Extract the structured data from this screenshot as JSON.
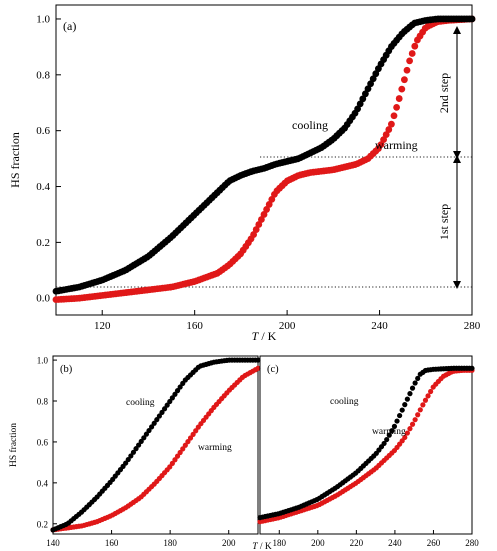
{
  "colors": {
    "cooling": "#000000",
    "warming": "#e01818"
  },
  "chart_data": [
    {
      "panel": "(a)",
      "type": "scatter",
      "xlabel_italic": "T",
      "xlabel_unit": " / K",
      "ylabel": "HS fraction",
      "xlim": [
        100,
        280
      ],
      "ylim": [
        -0.06,
        1.05
      ],
      "xticks": [
        "120",
        "160",
        "200",
        "240",
        "280"
      ],
      "yticks": [
        "0.0",
        "0.2",
        "0.4",
        "0.6",
        "0.8",
        "1.0"
      ],
      "series": [
        {
          "name": "cooling",
          "color": "#000000",
          "points": [
            [
              100,
              0.025
            ],
            [
              110,
              0.04
            ],
            [
              120,
              0.065
            ],
            [
              130,
              0.1
            ],
            [
              140,
              0.15
            ],
            [
              150,
              0.22
            ],
            [
              155,
              0.26
            ],
            [
              160,
              0.3
            ],
            [
              165,
              0.34
            ],
            [
              170,
              0.38
            ],
            [
              175,
              0.42
            ],
            [
              180,
              0.44
            ],
            [
              185,
              0.455
            ],
            [
              190,
              0.465
            ],
            [
              195,
              0.48
            ],
            [
              200,
              0.49
            ],
            [
              205,
              0.5
            ],
            [
              210,
              0.52
            ],
            [
              215,
              0.54
            ],
            [
              220,
              0.57
            ],
            [
              225,
              0.61
            ],
            [
              230,
              0.67
            ],
            [
              235,
              0.75
            ],
            [
              240,
              0.83
            ],
            [
              245,
              0.9
            ],
            [
              250,
              0.95
            ],
            [
              255,
              0.985
            ],
            [
              260,
              0.995
            ],
            [
              265,
              1.0
            ],
            [
              280,
              1.0
            ]
          ]
        },
        {
          "name": "warming",
          "color": "#e01818",
          "points": [
            [
              100,
              -0.005
            ],
            [
              110,
              0.0
            ],
            [
              120,
              0.01
            ],
            [
              130,
              0.02
            ],
            [
              140,
              0.03
            ],
            [
              150,
              0.04
            ],
            [
              160,
              0.06
            ],
            [
              170,
              0.09
            ],
            [
              175,
              0.12
            ],
            [
              180,
              0.16
            ],
            [
              185,
              0.22
            ],
            [
              190,
              0.3
            ],
            [
              195,
              0.38
            ],
            [
              200,
              0.42
            ],
            [
              205,
              0.44
            ],
            [
              210,
              0.45
            ],
            [
              220,
              0.46
            ],
            [
              230,
              0.48
            ],
            [
              235,
              0.5
            ],
            [
              240,
              0.54
            ],
            [
              245,
              0.62
            ],
            [
              248,
              0.7
            ],
            [
              250,
              0.76
            ],
            [
              253,
              0.85
            ],
            [
              256,
              0.92
            ],
            [
              260,
              0.97
            ],
            [
              265,
              0.99
            ],
            [
              270,
              0.995
            ],
            [
              280,
              1.0
            ]
          ]
        }
      ],
      "annotations": {
        "cooling": "cooling",
        "warming": "warming",
        "step1": "1st step",
        "step2": "2nd step"
      }
    },
    {
      "panel": "(b)",
      "type": "scatter",
      "xlabel_italic": "T",
      "xlabel_unit": " / K",
      "ylabel": "HS fraction",
      "xlim": [
        140,
        210
      ],
      "ylim": [
        0.15,
        1.02
      ],
      "xticks": [
        "140",
        "160",
        "180",
        "200"
      ],
      "yticks": [
        "0.2",
        "0.4",
        "0.6",
        "0.8",
        "1.0"
      ],
      "series": [
        {
          "name": "cooling",
          "color": "#000000",
          "points": [
            [
              140,
              0.17
            ],
            [
              145,
              0.2
            ],
            [
              150,
              0.26
            ],
            [
              155,
              0.33
            ],
            [
              160,
              0.41
            ],
            [
              165,
              0.5
            ],
            [
              170,
              0.6
            ],
            [
              175,
              0.7
            ],
            [
              180,
              0.8
            ],
            [
              185,
              0.9
            ],
            [
              190,
              0.97
            ],
            [
              195,
              0.99
            ],
            [
              200,
              1.0
            ],
            [
              210,
              1.0
            ]
          ]
        },
        {
          "name": "warming",
          "color": "#e01818",
          "points": [
            [
              140,
              0.17
            ],
            [
              145,
              0.18
            ],
            [
              150,
              0.19
            ],
            [
              155,
              0.21
            ],
            [
              160,
              0.24
            ],
            [
              165,
              0.28
            ],
            [
              170,
              0.33
            ],
            [
              175,
              0.4
            ],
            [
              180,
              0.48
            ],
            [
              185,
              0.58
            ],
            [
              190,
              0.68
            ],
            [
              195,
              0.77
            ],
            [
              200,
              0.85
            ],
            [
              205,
              0.92
            ],
            [
              210,
              0.96
            ]
          ]
        }
      ],
      "annotations": {
        "cooling": "cooling",
        "warming": "warming"
      }
    },
    {
      "panel": "(c)",
      "type": "scatter",
      "xlabel_italic": "",
      "xlabel_unit": "",
      "ylabel": "",
      "xlim": [
        170,
        280
      ],
      "ylim": [
        0.15,
        1.02
      ],
      "xticks": [
        "180",
        "200",
        "220",
        "240",
        "260",
        "280"
      ],
      "yticks": [],
      "series": [
        {
          "name": "cooling",
          "color": "#000000",
          "points": [
            [
              170,
              0.23
            ],
            [
              180,
              0.25
            ],
            [
              190,
              0.28
            ],
            [
              200,
              0.32
            ],
            [
              210,
              0.38
            ],
            [
              220,
              0.45
            ],
            [
              230,
              0.54
            ],
            [
              235,
              0.6
            ],
            [
              240,
              0.68
            ],
            [
              245,
              0.78
            ],
            [
              250,
              0.88
            ],
            [
              253,
              0.93
            ],
            [
              256,
              0.95
            ],
            [
              260,
              0.955
            ],
            [
              270,
              0.96
            ],
            [
              280,
              0.96
            ]
          ]
        },
        {
          "name": "warming",
          "color": "#e01818",
          "points": [
            [
              170,
              0.21
            ],
            [
              180,
              0.23
            ],
            [
              190,
              0.26
            ],
            [
              200,
              0.29
            ],
            [
              210,
              0.34
            ],
            [
              220,
              0.4
            ],
            [
              230,
              0.47
            ],
            [
              240,
              0.56
            ],
            [
              245,
              0.62
            ],
            [
              250,
              0.7
            ],
            [
              255,
              0.79
            ],
            [
              260,
              0.87
            ],
            [
              265,
              0.92
            ],
            [
              270,
              0.945
            ],
            [
              275,
              0.95
            ],
            [
              280,
              0.95
            ]
          ]
        }
      ],
      "annotations": {
        "cooling": "cooling",
        "warming": "warming"
      }
    }
  ]
}
